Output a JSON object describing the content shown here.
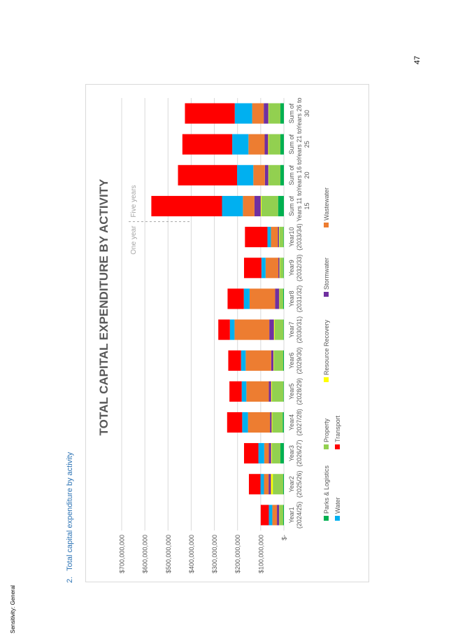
{
  "header": {
    "sensitivity": "Sensitivity: General",
    "page_number": "47"
  },
  "section": {
    "number": "2.",
    "title": "Total capital expenditure by activity"
  },
  "chart_data": {
    "type": "bar",
    "orientation": "vertical",
    "stacked": true,
    "title": "TOTAL CAPITAL EXPENDITURE BY ACTIVITY",
    "y_tick_labels": [
      "$-",
      "$100,000,000",
      "$200,000,000",
      "$300,000,000",
      "$400,000,000",
      "$500,000,000",
      "$600,000,000",
      "$700,000,000"
    ],
    "ylim": [
      0,
      700000000
    ],
    "grid": true,
    "legend_position": "bottom",
    "annotations": {
      "one_year": "One year",
      "five_years": "Five years"
    },
    "categories": [
      [
        "Year1",
        "(2024/25)"
      ],
      [
        "Year2",
        "(2025/26)"
      ],
      [
        "Year3",
        "(2026/27)"
      ],
      [
        "Year4",
        "(2027/28)"
      ],
      [
        "Year5",
        "(2028/29)"
      ],
      [
        "Year6",
        "(2029/30)"
      ],
      [
        "Year7",
        "(2030/31)"
      ],
      [
        "Year8",
        "(2031/32)"
      ],
      [
        "Year9",
        "(2032/33)"
      ],
      [
        "Year10",
        "(2033/34)"
      ],
      [
        "Sum of",
        "Years 11 to",
        "15"
      ],
      [
        "Sum of",
        "Years 16 to",
        "20"
      ],
      [
        "Sum of",
        "Years 21 to",
        "25"
      ],
      [
        "Sum of",
        "Years 26 to",
        "30"
      ]
    ],
    "series": [
      {
        "name": "Parks & Logistics",
        "color": "#00b050",
        "values": [
          3000000,
          3000000,
          15000000,
          5000000,
          2000000,
          3000000,
          2000000,
          3000000,
          2000000,
          2000000,
          25000000,
          15000000,
          15000000,
          15000000
        ]
      },
      {
        "name": "Property",
        "color": "#92d050",
        "values": [
          15000000,
          45000000,
          37000000,
          45000000,
          50000000,
          40000000,
          38000000,
          15000000,
          15000000,
          17000000,
          72000000,
          50000000,
          50000000,
          50000000
        ]
      },
      {
        "name": "Resource Recovery",
        "color": "#ffff00",
        "values": [
          2000000,
          8000000,
          3000000,
          3000000,
          3000000,
          2000000,
          3000000,
          2000000,
          2000000,
          2000000,
          3000000,
          2000000,
          3000000,
          2000000
        ]
      },
      {
        "name": "Stormwater",
        "color": "#7030a0",
        "values": [
          10000000,
          10000000,
          10000000,
          7000000,
          10000000,
          10000000,
          20000000,
          18000000,
          5000000,
          5000000,
          27000000,
          15000000,
          15000000,
          20000000
        ]
      },
      {
        "name": "Wastewater",
        "color": "#ed7d31",
        "values": [
          20000000,
          20000000,
          20000000,
          95000000,
          97000000,
          110000000,
          150000000,
          110000000,
          55000000,
          30000000,
          50000000,
          50000000,
          70000000,
          50000000
        ]
      },
      {
        "name": "Water",
        "color": "#00b0f0",
        "values": [
          15000000,
          15000000,
          25000000,
          25000000,
          20000000,
          20000000,
          20000000,
          25000000,
          18000000,
          15000000,
          90000000,
          70000000,
          70000000,
          75000000
        ]
      },
      {
        "name": "Transport",
        "color": "#ff0000",
        "values": [
          35000000,
          50000000,
          62000000,
          65000000,
          53000000,
          55000000,
          50000000,
          70000000,
          75000000,
          97000000,
          305000000,
          255000000,
          215000000,
          215000000
        ]
      }
    ]
  }
}
